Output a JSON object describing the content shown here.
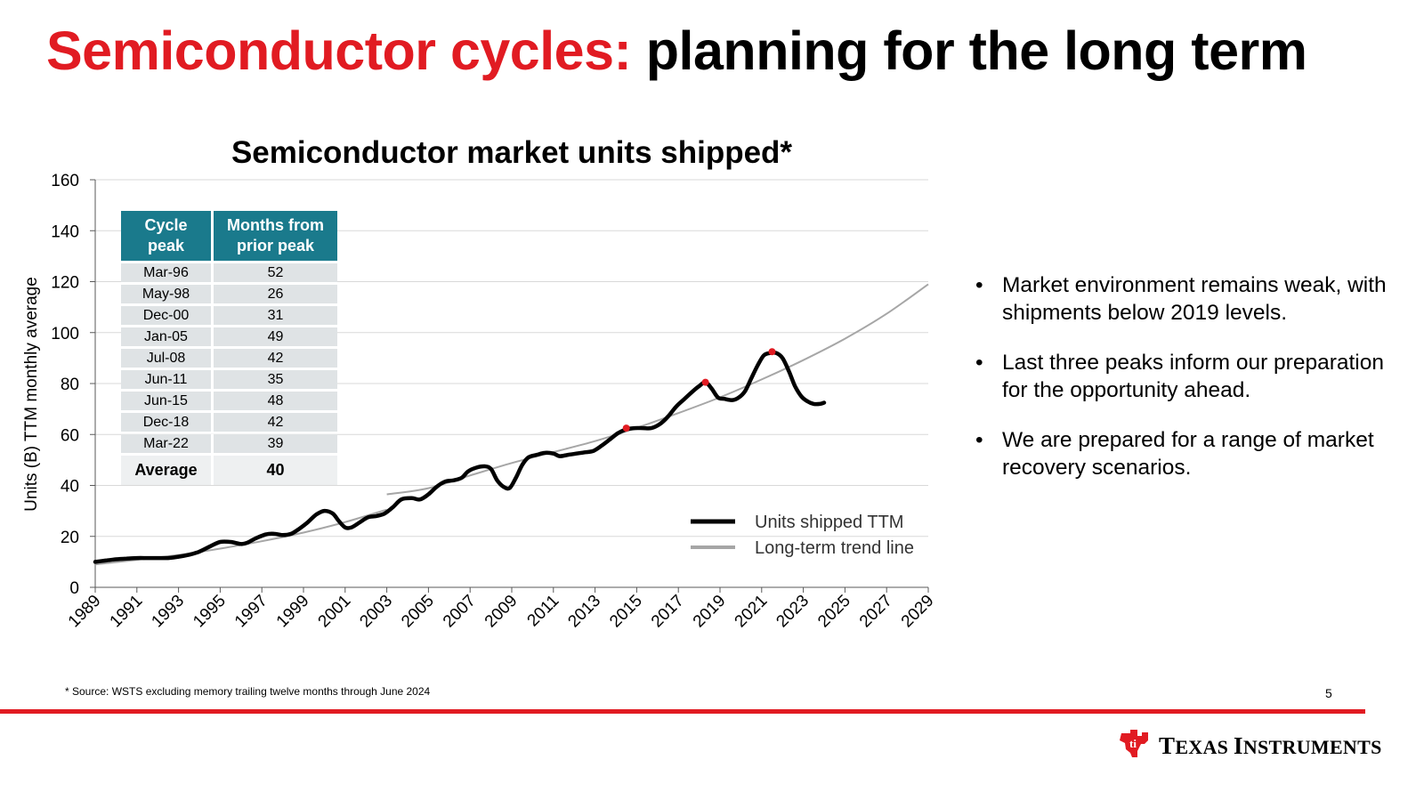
{
  "slide": {
    "title_red": "Semiconductor cycles:",
    "title_black": "planning for the long term",
    "page_number": "5",
    "footnote": "* Source: WSTS excluding memory trailing twelve months through June 2024"
  },
  "logo": {
    "text_big1": "T",
    "text_rest1": "EXAS ",
    "text_big2": "I",
    "text_rest2": "NSTRUMENTS",
    "icon": "texas-instruments-logo-icon",
    "color": "#e11b22"
  },
  "bullets": [
    "Market environment remains weak, with shipments below 2019 levels.",
    "Last three peaks inform our preparation for the opportunity ahead.",
    "We are prepared for a range of market recovery scenarios."
  ],
  "table": {
    "headers": [
      "Cycle peak",
      "Months from prior peak"
    ],
    "rows": [
      [
        "Mar-96",
        "52"
      ],
      [
        "May-98",
        "26"
      ],
      [
        "Dec-00",
        "31"
      ],
      [
        "Jan-05",
        "49"
      ],
      [
        "Jul-08",
        "42"
      ],
      [
        "Jun-11",
        "35"
      ],
      [
        "Jun-15",
        "48"
      ],
      [
        "Dec-18",
        "42"
      ],
      [
        "Mar-22",
        "39"
      ]
    ],
    "average_label": "Average",
    "average_value": "40",
    "header_color": "#1a7a8c"
  },
  "chart_data": {
    "type": "line",
    "title": "Semiconductor market units shipped*",
    "ylabel": "Units (B) TTM monthly average",
    "xlabel": "",
    "xlim": [
      1989,
      2029
    ],
    "ylim": [
      0,
      160
    ],
    "x_ticks": [
      "1989",
      "1991",
      "1993",
      "1995",
      "1997",
      "1999",
      "2001",
      "2003",
      "2005",
      "2007",
      "2009",
      "2011",
      "2013",
      "2015",
      "2017",
      "2019",
      "2021",
      "2023",
      "2025",
      "2027",
      "2029"
    ],
    "y_ticks": [
      "0",
      "20",
      "40",
      "60",
      "80",
      "100",
      "120",
      "140",
      "160"
    ],
    "grid": true,
    "legend_position": "bottom-right",
    "series": [
      {
        "name": "Units shipped TTM",
        "color": "#000000",
        "points": [
          [
            1989,
            10
          ],
          [
            1989.5,
            10.5
          ],
          [
            1990,
            11
          ],
          [
            1990.5,
            11.3
          ],
          [
            1991,
            11.5
          ],
          [
            1991.5,
            11.5
          ],
          [
            1992,
            11.5
          ],
          [
            1992.5,
            11.5
          ],
          [
            1993,
            12
          ],
          [
            1993.5,
            12.8
          ],
          [
            1994,
            14
          ],
          [
            1994.5,
            16
          ],
          [
            1995,
            17.8
          ],
          [
            1995.5,
            17.8
          ],
          [
            1996,
            17
          ],
          [
            1996.3,
            17.5
          ],
          [
            1996.7,
            19.2
          ],
          [
            1997.2,
            20.8
          ],
          [
            1997.6,
            21
          ],
          [
            1998,
            20.5
          ],
          [
            1998.4,
            21
          ],
          [
            1998.8,
            23
          ],
          [
            1999.2,
            25.5
          ],
          [
            1999.6,
            28.5
          ],
          [
            2000,
            30
          ],
          [
            2000.4,
            29
          ],
          [
            2000.7,
            26
          ],
          [
            2001,
            23.5
          ],
          [
            2001.3,
            23.5
          ],
          [
            2001.7,
            25.5
          ],
          [
            2002.1,
            27.5
          ],
          [
            2002.5,
            28
          ],
          [
            2002.9,
            29
          ],
          [
            2003.3,
            31.5
          ],
          [
            2003.7,
            34.5
          ],
          [
            2004.2,
            35
          ],
          [
            2004.6,
            34.5
          ],
          [
            2005,
            36.5
          ],
          [
            2005.4,
            39.5
          ],
          [
            2005.8,
            41.5
          ],
          [
            2006.2,
            42
          ],
          [
            2006.6,
            43
          ],
          [
            2006.9,
            45.5
          ],
          [
            2007.3,
            47
          ],
          [
            2007.7,
            47.5
          ],
          [
            2008,
            46.5
          ],
          [
            2008.3,
            42
          ],
          [
            2008.6,
            39.5
          ],
          [
            2008.9,
            39
          ],
          [
            2009.2,
            43
          ],
          [
            2009.5,
            48
          ],
          [
            2009.8,
            51
          ],
          [
            2010.2,
            52
          ],
          [
            2010.6,
            52.8
          ],
          [
            2011,
            52.5
          ],
          [
            2011.3,
            51.5
          ],
          [
            2011.7,
            52
          ],
          [
            2012.1,
            52.5
          ],
          [
            2012.5,
            53
          ],
          [
            2012.9,
            53.5
          ],
          [
            2013.3,
            55.5
          ],
          [
            2013.7,
            58
          ],
          [
            2014.1,
            60.5
          ],
          [
            2014.5,
            62
          ],
          [
            2014.9,
            62.5
          ],
          [
            2015.3,
            62.5
          ],
          [
            2015.7,
            62.5
          ],
          [
            2016.1,
            64
          ],
          [
            2016.5,
            67
          ],
          [
            2016.9,
            71
          ],
          [
            2017.3,
            74
          ],
          [
            2017.7,
            77
          ],
          [
            2018,
            79
          ],
          [
            2018.3,
            80.5
          ],
          [
            2018.6,
            78
          ],
          [
            2018.9,
            74.5
          ],
          [
            2019.2,
            74
          ],
          [
            2019.6,
            73.5
          ],
          [
            2019.9,
            74.5
          ],
          [
            2020.2,
            77
          ],
          [
            2020.5,
            82
          ],
          [
            2020.8,
            87
          ],
          [
            2021.1,
            91
          ],
          [
            2021.4,
            92
          ],
          [
            2021.7,
            92
          ],
          [
            2022,
            90
          ],
          [
            2022.3,
            85
          ],
          [
            2022.6,
            79
          ],
          [
            2022.9,
            75
          ],
          [
            2023.2,
            73
          ],
          [
            2023.5,
            72
          ],
          [
            2023.8,
            72
          ],
          [
            2024,
            72.5
          ]
        ]
      },
      {
        "name": "Long-term trend line",
        "color": "#a6a6a6",
        "segments": [
          [
            [
              1989,
              9
            ],
            [
              1991,
              10.8
            ],
            [
              1993,
              12.7
            ],
            [
              1995,
              15.2
            ],
            [
              1997,
              18.1
            ],
            [
              1999,
              21.5
            ],
            [
              2001,
              25.6
            ],
            [
              2003,
              30.5
            ]
          ],
          [
            [
              2003,
              36.5
            ],
            [
              2005,
              38.9
            ],
            [
              2007,
              43.9
            ],
            [
              2009,
              48.8
            ],
            [
              2011,
              53.1
            ],
            [
              2013,
              57.4
            ],
            [
              2015,
              62.6
            ],
            [
              2017,
              68.4
            ],
            [
              2019,
              74.6
            ],
            [
              2021,
              81.6
            ],
            [
              2023,
              89.2
            ],
            [
              2025,
              97.6
            ],
            [
              2027,
              107.4
            ],
            [
              2029,
              119
            ]
          ]
        ]
      }
    ],
    "peak_markers": [
      {
        "x": 2014.5,
        "y": 62.5
      },
      {
        "x": 2018.3,
        "y": 80.5
      },
      {
        "x": 2021.5,
        "y": 92.5
      }
    ],
    "peak_marker_color": "#e11b22"
  }
}
